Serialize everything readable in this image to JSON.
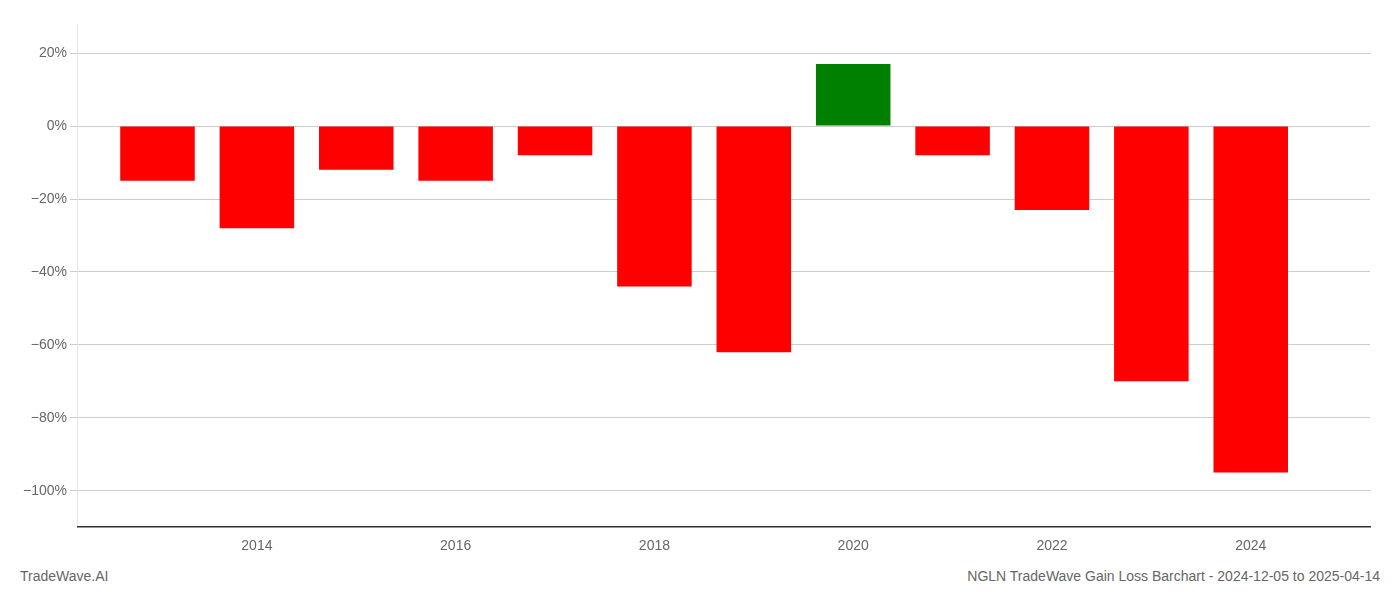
{
  "chart_data": {
    "type": "bar",
    "x": [
      2013,
      2014,
      2015,
      2016,
      2017,
      2018,
      2019,
      2020,
      2021,
      2022,
      2023,
      2024
    ],
    "values": [
      -0.15,
      -0.28,
      -0.12,
      -0.15,
      -0.08,
      -0.44,
      -0.62,
      0.17,
      -0.08,
      -0.23,
      -0.7,
      -0.95
    ],
    "colors": [
      "#ff0000",
      "#ff0000",
      "#ff0000",
      "#ff0000",
      "#ff0000",
      "#ff0000",
      "#ff0000",
      "#008000",
      "#ff0000",
      "#ff0000",
      "#ff0000",
      "#ff0000"
    ],
    "xlim": [
      2012.2,
      2025.2
    ],
    "xticks": [
      2014,
      2016,
      2018,
      2020,
      2022,
      2024
    ],
    "ylim": [
      -1.1,
      0.28
    ],
    "yticks": [
      {
        "value": 0.2,
        "label": "20%"
      },
      {
        "value": 0,
        "label": "0%"
      },
      {
        "value": -0.2,
        "label": "−20%"
      },
      {
        "value": -0.4,
        "label": "−40%"
      },
      {
        "value": -0.6,
        "label": "−60%"
      },
      {
        "value": -0.8,
        "label": "−80%"
      },
      {
        "value": -1.0,
        "label": "−100%"
      }
    ],
    "grid": "y",
    "annotations": [
      "TradeWave.AI",
      "NGLN TradeWave Gain Loss Barchart - 2024-12-05 to 2025-04-14"
    ]
  }
}
